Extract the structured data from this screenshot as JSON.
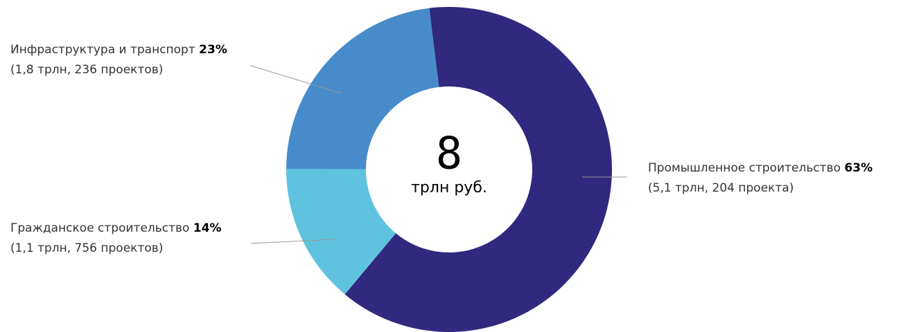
{
  "chart_data": {
    "type": "donut",
    "categories": [
      "Промышленное строительство",
      "Гражданское строительство",
      "Инфраструктура и транспорт"
    ],
    "values": [
      63,
      14,
      23
    ],
    "value_labels": [
      "63%",
      "14%",
      "23%"
    ],
    "details": [
      "(5,1 трлн, 204 проекта)",
      "(1,1 трлн, 756 проектов)",
      "(1,8 трлн, 236 проектов)"
    ],
    "colors": [
      "#31287f",
      "#5fc3df",
      "#478bcb"
    ],
    "total": 8,
    "total_label": "трлн руб."
  }
}
